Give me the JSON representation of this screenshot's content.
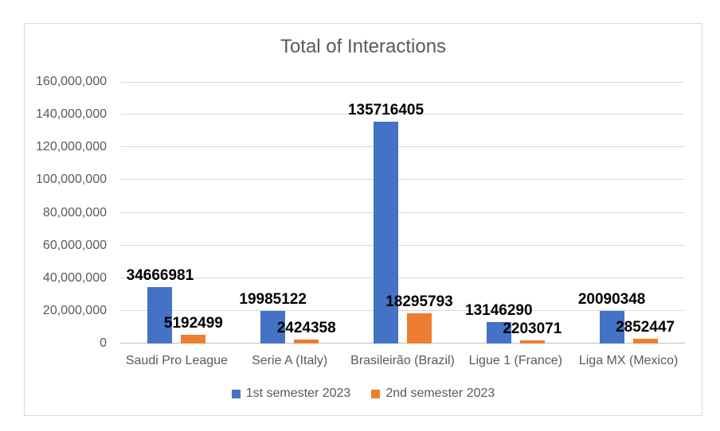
{
  "chart_data": {
    "type": "bar",
    "title": "Total of Interactions",
    "categories": [
      "Saudi Pro League",
      "Serie A (Italy)",
      "Brasileirão (Brazil)",
      "Ligue 1 (France)",
      "Liga MX (Mexico)"
    ],
    "series": [
      {
        "name": "1st semester 2023",
        "color": "#4472C4",
        "values": [
          34666981,
          19985122,
          135716405,
          13146290,
          20090348
        ],
        "data_labels": [
          "34666981",
          "19985122",
          "135716405",
          "13146290",
          "20090348"
        ]
      },
      {
        "name": "2nd semester 2023",
        "color": "#ED7D31",
        "values": [
          5192499,
          2424358,
          18295793,
          2203071,
          2852447
        ],
        "data_labels": [
          "5192499",
          "2424358",
          "18295793",
          "2203071",
          "2852447"
        ]
      }
    ],
    "xlabel": "",
    "ylabel": "",
    "ylim": [
      0,
      160000000
    ],
    "ytick_interval": 20000000,
    "ytick_labels": [
      "0",
      "20,000,000",
      "40,000,000",
      "60,000,000",
      "80,000,000",
      "100,000,000",
      "120,000,000",
      "140,000,000",
      "160,000,000"
    ],
    "grid": true,
    "legend_position": "bottom",
    "colors": {
      "series1": "#4472C4",
      "series2": "#ED7D31",
      "gridline": "#D9D9D9",
      "axis_line": "#BFBFBF",
      "text_gray": "#595959",
      "data_label_text": "#000000",
      "frame_border": "#D9D9D9",
      "background": "#FFFFFF"
    }
  }
}
